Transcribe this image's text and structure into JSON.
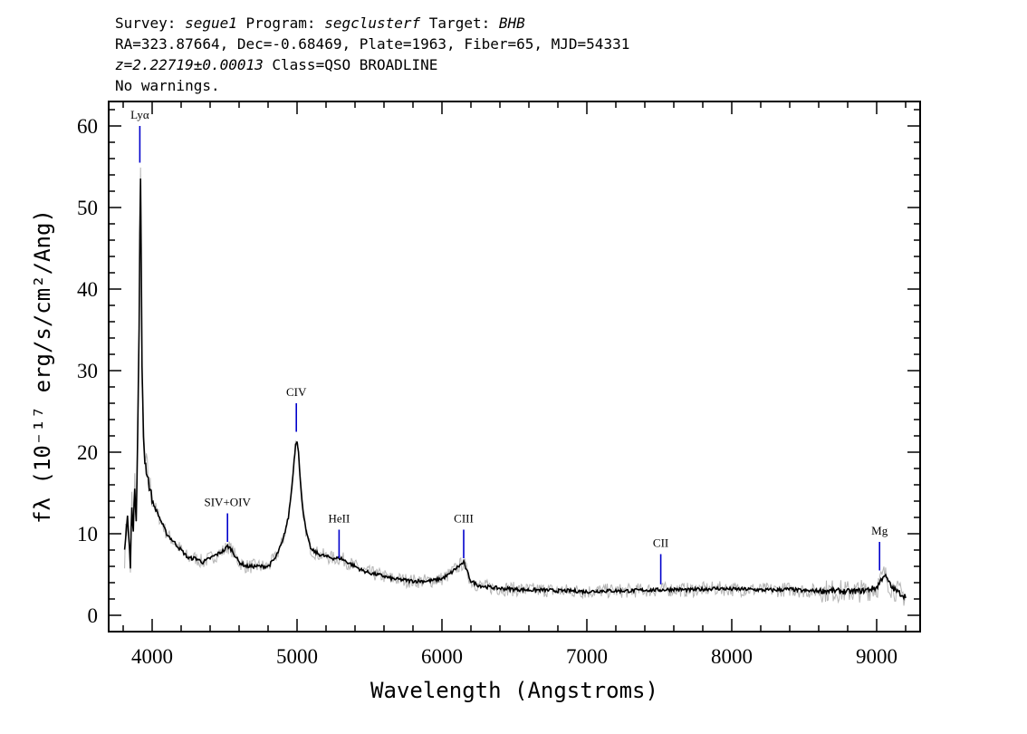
{
  "header": {
    "line1": {
      "survey_label": "Survey: ",
      "survey": "segue1",
      "program_label": " Program: ",
      "program": "segclusterf",
      "target_label": " Target: ",
      "target": "BHB"
    },
    "line2": "RA=323.87664, Dec=-0.68469, Plate=1963, Fiber=65, MJD=54331",
    "line3": {
      "redshift": "z=2.22719±0.00013",
      "class": " Class=QSO BROADLINE"
    },
    "line4": "No warnings."
  },
  "colors": {
    "spectrum": "#000000",
    "error": "#b4b4b4",
    "line_marker": "#0000cc"
  },
  "chart_data": {
    "type": "line",
    "xlabel": "Wavelength (Angstroms)",
    "ylabel": "fλ (10⁻¹⁷ erg/s/cm²/Ang)",
    "xlim": [
      3700,
      9300
    ],
    "ylim": [
      -2,
      63
    ],
    "xticks": [
      4000,
      5000,
      6000,
      7000,
      8000,
      9000
    ],
    "yticks": [
      0,
      10,
      20,
      30,
      40,
      50,
      60
    ],
    "series": [
      {
        "x": [
          3810,
          3830,
          3850,
          3860,
          3870,
          3880,
          3890,
          3900,
          3910,
          3915,
          3920,
          3925,
          3930,
          3940,
          3950,
          3960,
          3980,
          4000,
          4050,
          4100,
          4150,
          4200,
          4250,
          4300,
          4350,
          4400,
          4450,
          4500,
          4520,
          4550,
          4600,
          4650,
          4700,
          4750,
          4800,
          4850,
          4900,
          4940,
          4960,
          4980,
          4990,
          5000,
          5010,
          5020,
          5040,
          5060,
          5080,
          5100,
          5150,
          5200,
          5250,
          5300,
          5350,
          5400,
          5450,
          5500,
          5550,
          5600,
          5650,
          5700,
          5750,
          5800,
          5850,
          5900,
          5950,
          6000,
          6050,
          6100,
          6130,
          6150,
          6170,
          6200,
          6250,
          6300,
          6400,
          6500,
          6600,
          6700,
          6800,
          6900,
          7000,
          7100,
          7200,
          7300,
          7400,
          7500,
          7600,
          7700,
          7800,
          7900,
          8000,
          8100,
          8200,
          8300,
          8400,
          8500,
          8600,
          8700,
          8800,
          8900,
          9000,
          9030,
          9050,
          9080,
          9100,
          9150,
          9200
        ],
        "y": [
          8,
          12,
          6,
          14,
          10,
          16,
          12,
          22,
          35,
          47,
          53,
          44,
          30,
          22,
          19,
          18,
          16,
          14,
          12,
          10,
          9,
          8,
          7,
          7,
          6.5,
          7,
          7.5,
          8,
          8.5,
          8,
          6.5,
          6,
          6,
          6,
          6,
          7,
          9,
          12,
          15,
          19,
          21,
          21.5,
          20,
          17,
          13,
          10.5,
          9,
          8,
          7.5,
          7.2,
          7,
          7,
          6.5,
          6,
          5.5,
          5.2,
          5,
          4.8,
          4.5,
          4.4,
          4.3,
          4.2,
          4.2,
          4.2,
          4.3,
          4.5,
          5,
          5.8,
          6.2,
          6.5,
          5.5,
          4.2,
          3.7,
          3.5,
          3.3,
          3.2,
          3.1,
          3.1,
          3.0,
          3.0,
          2.9,
          3.0,
          3.0,
          3.0,
          3.1,
          3.1,
          3.2,
          3.1,
          3.2,
          3.3,
          3.2,
          3.2,
          3.1,
          3.1,
          3.2,
          3.0,
          3.0,
          3.0,
          2.9,
          3.0,
          3.4,
          4.3,
          5.0,
          4.2,
          3.5,
          2.8,
          2.3
        ]
      }
    ],
    "emission_lines": [
      {
        "label": "Lyα",
        "x": 3915,
        "y_top": 55.5,
        "y_bottom": 60
      },
      {
        "label": "SIV+OIV",
        "x": 4520,
        "y_top": 9,
        "y_bottom": 12.5
      },
      {
        "label": "CIV",
        "x": 4995,
        "y_top": 22.5,
        "y_bottom": 26
      },
      {
        "label": "HeII",
        "x": 5290,
        "y_top": 7,
        "y_bottom": 10.5
      },
      {
        "label": "CIII",
        "x": 6150,
        "y_top": 7,
        "y_bottom": 10.5
      },
      {
        "label": "CII",
        "x": 7510,
        "y_top": 3.8,
        "y_bottom": 7.5
      },
      {
        "label": "Mg",
        "x": 9020,
        "y_top": 5.5,
        "y_bottom": 9
      }
    ]
  }
}
